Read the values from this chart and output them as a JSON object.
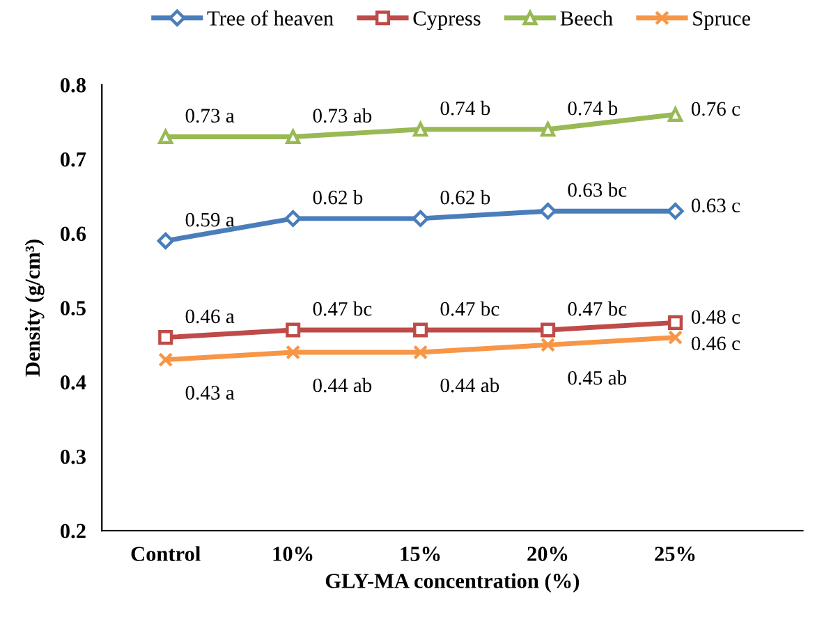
{
  "chart_data": {
    "type": "line",
    "xlabel": "GLY-MA concentration (%)",
    "ylabel": "Density (g/cm³)",
    "categories": [
      "Control",
      "10%",
      "15%",
      "20%",
      "25%"
    ],
    "ylim": [
      0.2,
      0.8
    ],
    "yticks": [
      0.2,
      0.3,
      0.4,
      0.5,
      0.6,
      0.7,
      0.8
    ],
    "grid": false,
    "legend": "top",
    "series": [
      {
        "name": "Tree of heaven",
        "color": "#4a7ebb",
        "marker": "diamond",
        "values": [
          0.59,
          0.62,
          0.62,
          0.63,
          0.63
        ],
        "value_labels": [
          "0.59 a",
          "0.62 b",
          "0.62 b",
          "0.63 bc",
          "0.63 c"
        ]
      },
      {
        "name": "Cypress",
        "color": "#be4b48",
        "marker": "square",
        "values": [
          0.46,
          0.47,
          0.47,
          0.47,
          0.48
        ],
        "value_labels": [
          "0.46 a",
          "0.47 bc",
          "0.47 bc",
          "0.47 bc",
          "0.48 c"
        ]
      },
      {
        "name": "Beech",
        "color": "#98b954",
        "marker": "triangle",
        "values": [
          0.73,
          0.73,
          0.74,
          0.74,
          0.76
        ],
        "value_labels": [
          "0.73 a",
          "0.73 ab",
          "0.74 b",
          "0.74 b",
          "0.76 c"
        ]
      },
      {
        "name": "Spruce",
        "color": "#f79646",
        "marker": "cross",
        "values": [
          0.43,
          0.44,
          0.44,
          0.45,
          0.46
        ],
        "value_labels": [
          "0.43 a",
          "0.44 ab",
          "0.44 ab",
          "0.45 ab",
          "0.46 c"
        ]
      }
    ]
  }
}
